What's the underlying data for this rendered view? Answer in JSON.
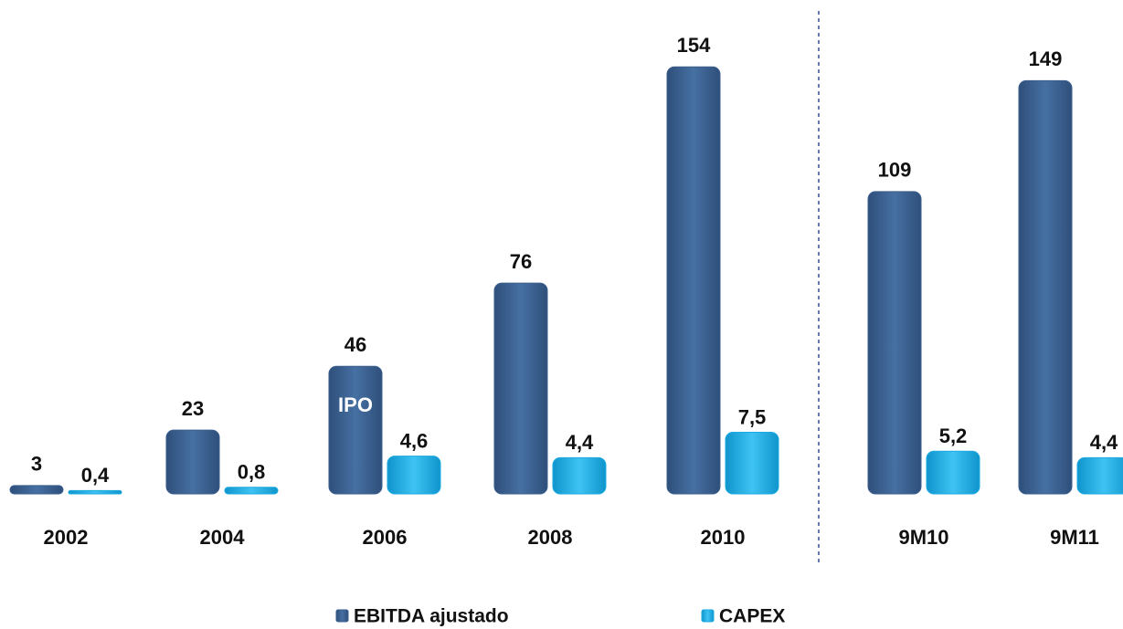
{
  "chart_data": {
    "type": "bar",
    "categories": [
      "2002",
      "2004",
      "2006",
      "2008",
      "2010",
      "9M10",
      "9M11"
    ],
    "series": [
      {
        "name": "EBITDA ajustado",
        "color": "#3b5f8e",
        "values": [
          3,
          23,
          46,
          76,
          154,
          109,
          149
        ]
      },
      {
        "name": "CAPEX",
        "color": "#1aa9e0",
        "axis": "y2",
        "values": [
          0.4,
          0.8,
          4.6,
          4.4,
          7.5,
          5.2,
          4.4
        ],
        "value_labels": [
          "0,4",
          "0,8",
          "4,6",
          "4,4",
          "7,5",
          "5,2",
          "4,4"
        ]
      }
    ],
    "ylim": [
      0,
      160
    ],
    "y2lim": [
      0,
      54
    ],
    "annotations": [
      {
        "text": "IPO",
        "category": "2006"
      }
    ],
    "legend": "bottom"
  }
}
